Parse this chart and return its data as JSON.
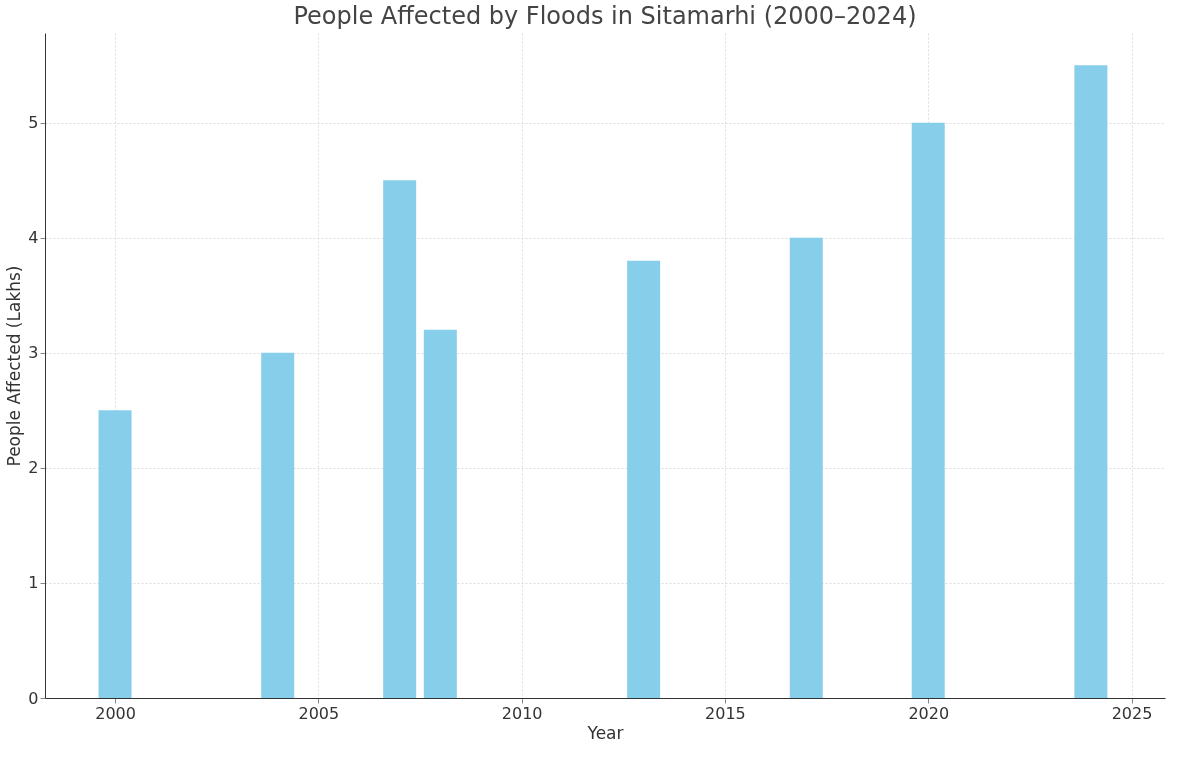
{
  "chart_data": {
    "type": "bar",
    "title": "People Affected by Floods in Sitamarhi (2000–2024)",
    "xlabel": "Year",
    "ylabel": "People Affected (Lakhs)",
    "x": [
      2000,
      2004,
      2007,
      2008,
      2013,
      2017,
      2020,
      2024
    ],
    "values": [
      2.5,
      3,
      4.5,
      3.2,
      3.8,
      4,
      5,
      5.5
    ],
    "color": "#87ceeb",
    "xlim": [
      1998.4,
      2025.7
    ],
    "xticks": [
      2000,
      2005,
      2010,
      2015,
      2020,
      2025
    ],
    "ylim": [
      0,
      5.78
    ],
    "yticks": [
      0,
      1,
      2,
      3,
      4,
      5
    ],
    "grid": true
  }
}
